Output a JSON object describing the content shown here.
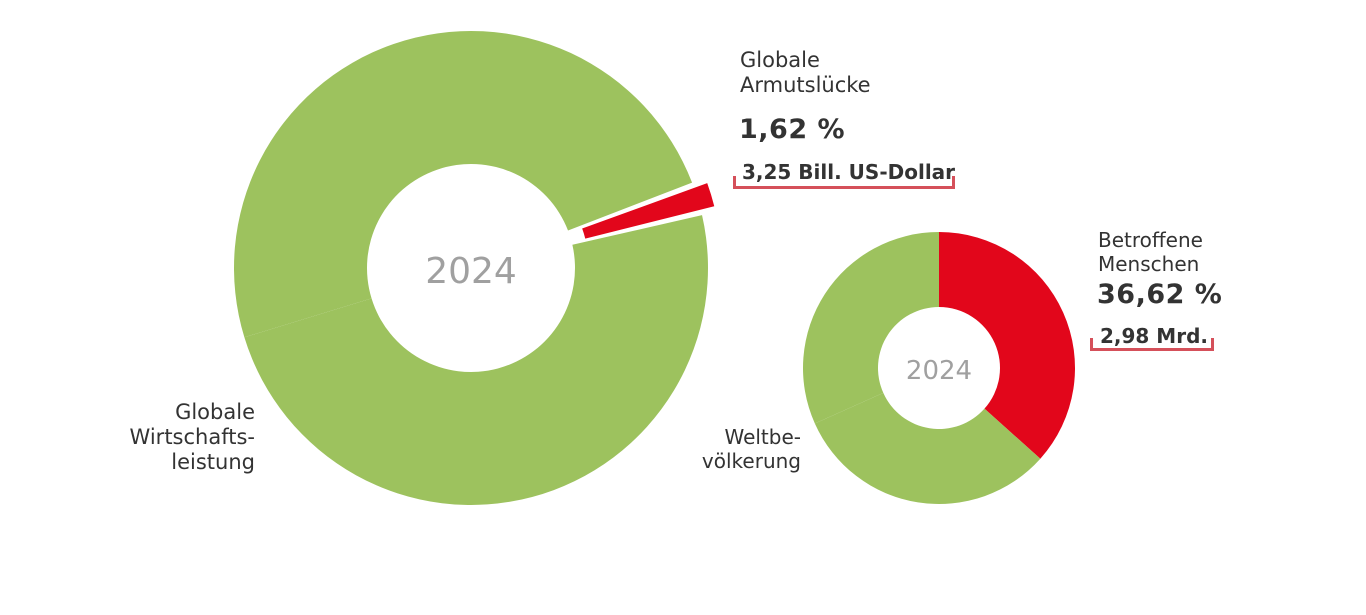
{
  "chart_data": [
    {
      "type": "pie",
      "center_label": "2024",
      "slices": [
        {
          "label": "Globale Wirtschaftsleistung",
          "value": 98.38,
          "color": "#9dc25e"
        },
        {
          "label": "Globale Armutslücke",
          "value": 1.62,
          "color": "#e2061b"
        }
      ],
      "highlight": {
        "title_line1": "Globale",
        "title_line2": "Armutslücke",
        "percent_text": "1,62 %",
        "amount_text": "3,25 Bill. US-Dollar"
      },
      "base_label_lines": [
        "Globale",
        "Wirtschafts-",
        "leistung"
      ]
    },
    {
      "type": "pie",
      "center_label": "2024",
      "slices": [
        {
          "label": "Betroffene Menschen",
          "value": 36.62,
          "color": "#e2061b"
        },
        {
          "label": "Weltbevölkerung",
          "value": 63.38,
          "color": "#9dc25e"
        }
      ],
      "highlight": {
        "title_line1": "Betroffene",
        "title_line2": "Menschen",
        "percent_text": "36,62 %",
        "amount_text": "2,98 Mrd."
      },
      "base_label_lines": [
        "Weltbe-",
        "völkerung"
      ]
    }
  ],
  "colors": {
    "green": "#9dc25e",
    "red": "#e2061b",
    "text": "#333333",
    "center_text": "#a0a0a0",
    "bracket": "#d5505a"
  }
}
